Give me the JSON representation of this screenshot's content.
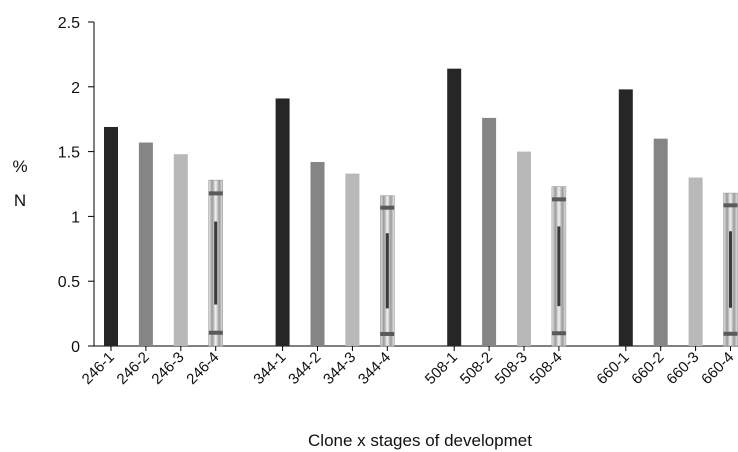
{
  "chart_data": {
    "type": "bar",
    "title": "",
    "xlabel": "Clone x stages of developmet",
    "ylabel_lines": [
      "%",
      "N"
    ],
    "ylim": [
      0,
      2.5
    ],
    "yticks": [
      "0",
      "0.5",
      "1",
      "1.5",
      "2",
      "2.5"
    ],
    "grid": false,
    "groups": [
      {
        "bars": [
          {
            "label": "246-1",
            "value": 1.69,
            "color": "#262626"
          },
          {
            "label": "246-2",
            "value": 1.57,
            "color": "#858585"
          },
          {
            "label": "246-3",
            "value": 1.48,
            "color": "#b8b8b8"
          },
          {
            "label": "246-4",
            "value": 1.28,
            "color": "#cfcfcf",
            "pattern": "striped"
          }
        ]
      },
      {
        "bars": [
          {
            "label": "344-1",
            "value": 1.91,
            "color": "#262626"
          },
          {
            "label": "344-2",
            "value": 1.42,
            "color": "#858585"
          },
          {
            "label": "344-3",
            "value": 1.33,
            "color": "#b8b8b8"
          },
          {
            "label": "344-4",
            "value": 1.16,
            "color": "#cfcfcf",
            "pattern": "striped"
          }
        ]
      },
      {
        "bars": [
          {
            "label": "508-1",
            "value": 2.14,
            "color": "#262626"
          },
          {
            "label": "508-2",
            "value": 1.76,
            "color": "#858585"
          },
          {
            "label": "508-3",
            "value": 1.5,
            "color": "#b8b8b8"
          },
          {
            "label": "508-4",
            "value": 1.23,
            "color": "#cfcfcf",
            "pattern": "striped"
          }
        ]
      },
      {
        "bars": [
          {
            "label": "660-1",
            "value": 1.98,
            "color": "#262626"
          },
          {
            "label": "660-2",
            "value": 1.6,
            "color": "#858585"
          },
          {
            "label": "660-3",
            "value": 1.3,
            "color": "#b8b8b8"
          },
          {
            "label": "660-4",
            "value": 1.18,
            "color": "#cfcfcf",
            "pattern": "striped"
          }
        ]
      }
    ]
  }
}
